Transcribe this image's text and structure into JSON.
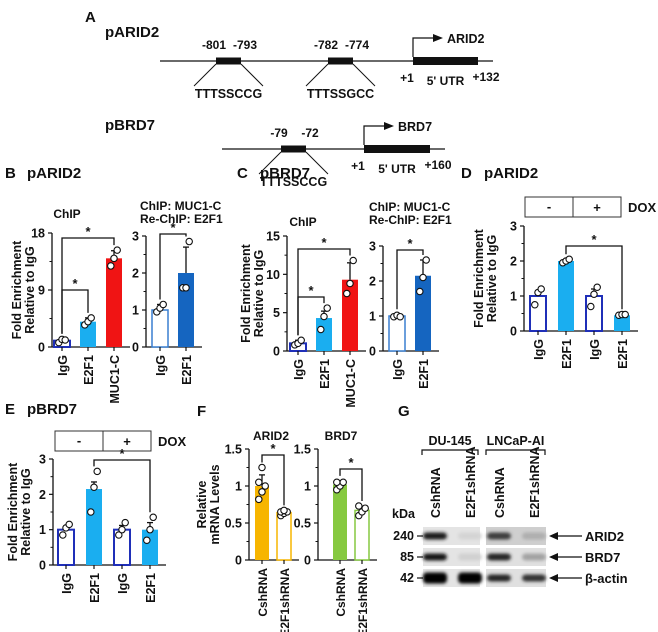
{
  "figure": {
    "panelA": {
      "letter": "A",
      "pARID2": {
        "label": "pARID2",
        "sites": [
          {
            "start": "-801",
            "end": "-793",
            "motif": "TTTSSCCG"
          },
          {
            "start": "-782",
            "end": "-774",
            "motif": "TTTSSGCC"
          }
        ],
        "gene": "ARID2",
        "tss": "+1",
        "utr": "5' UTR",
        "utr_end": "+132"
      },
      "pBRD7": {
        "label": "pBRD7",
        "sites": [
          {
            "start": "-79",
            "end": "-72",
            "motif": "TTTSSCCG"
          }
        ],
        "gene": "BRD7",
        "tss": "+1",
        "utr": "5' UTR",
        "utr_end": "+160"
      }
    },
    "panelB": {
      "letter": "B",
      "title": "pARID2"
    },
    "panelC": {
      "letter": "C",
      "title": "pBRD7"
    },
    "panelD": {
      "letter": "D",
      "title": "pARID2",
      "dox_label": "DOX",
      "dox_minus": "-",
      "dox_plus": "+"
    },
    "panelE": {
      "letter": "E",
      "title": "pBRD7",
      "dox_label": "DOX",
      "dox_minus": "-",
      "dox_plus": "+"
    },
    "panelF": {
      "letter": "F"
    },
    "panelG": {
      "letter": "G",
      "cell_lines": [
        "DU-145",
        "LNCaP-AI"
      ],
      "lanes": [
        "CshRNA",
        "E2F1shRNA",
        "CshRNA",
        "E2F1shRNA"
      ],
      "kda_label": "kDa",
      "markers": [
        "240",
        "85",
        "42"
      ],
      "bands": [
        "ARID2",
        "BRD7",
        "β-actin"
      ],
      "intensity": {
        "ARID2": [
          0.9,
          0.08,
          0.75,
          0.25
        ],
        "BRD7": [
          0.92,
          0.1,
          0.85,
          0.3
        ],
        "β-actin": [
          1.0,
          1.0,
          0.85,
          0.8
        ]
      }
    }
  },
  "chart_data": [
    {
      "id": "B1",
      "type": "bar",
      "title": "ChIP",
      "ylabel": "Fold Enrichment Relative to IgG",
      "categories": [
        "IgG",
        "E2F1",
        "MUC1-C"
      ],
      "values": [
        1,
        4,
        14
      ],
      "errors": [
        0.3,
        0.6,
        1.2
      ],
      "points": [
        [
          0.7,
          1.2,
          1.1
        ],
        [
          3.5,
          4.0,
          4.6
        ],
        [
          12.8,
          14.0,
          15.3
        ]
      ],
      "styles": [
        "hollow-navy",
        "lightblue",
        "red"
      ],
      "ylim": [
        0,
        18
      ],
      "yticks": [
        0,
        9,
        18
      ],
      "significance": [
        {
          "from": 0,
          "to": 2,
          "label": "*"
        },
        {
          "from": 0,
          "to": 1,
          "label": "*"
        }
      ]
    },
    {
      "id": "B2",
      "type": "bar",
      "title": "ChIP: MUC1-C\nRe-ChIP: E2F1",
      "categories": [
        "IgG",
        "E2F1"
      ],
      "values": [
        1,
        2
      ],
      "errors": [
        0.15,
        0.7
      ],
      "points": [
        [
          0.95,
          1.05,
          1.15
        ],
        [
          1.6,
          1.6,
          2.85
        ]
      ],
      "styles": [
        "hollow-blue",
        "darkblue"
      ],
      "ylim": [
        0,
        3
      ],
      "yticks": [
        0,
        1,
        2,
        3
      ],
      "significance": [
        {
          "from": 0,
          "to": 1,
          "label": "*"
        }
      ]
    },
    {
      "id": "C1",
      "type": "bar",
      "title": "ChIP",
      "ylabel": "Fold Enrichment Relative to IgG",
      "categories": [
        "IgG",
        "E2F1",
        "MUC1-C"
      ],
      "values": [
        1,
        4.3,
        9.3
      ],
      "errors": [
        0.4,
        0.9,
        2.2
      ],
      "points": [
        [
          0.8,
          1.0,
          1.4
        ],
        [
          2.8,
          4.5,
          5.6
        ],
        [
          7.5,
          8.8,
          11.8
        ]
      ],
      "styles": [
        "hollow-navy",
        "lightblue",
        "red"
      ],
      "ylim": [
        0,
        15
      ],
      "yticks": [
        0,
        5,
        10,
        15
      ],
      "significance": [
        {
          "from": 0,
          "to": 2,
          "label": "*"
        },
        {
          "from": 0,
          "to": 1,
          "label": "*"
        }
      ]
    },
    {
      "id": "C2",
      "type": "bar",
      "title": "ChIP: MUC1-C\nRe-ChIP: E2F1",
      "categories": [
        "IgG",
        "E2F1"
      ],
      "values": [
        1,
        2.15
      ],
      "errors": [
        0.05,
        0.45
      ],
      "points": [
        [
          0.98,
          1.02,
          0.98
        ],
        [
          1.7,
          2.1,
          2.6
        ]
      ],
      "styles": [
        "hollow-blue",
        "darkblue"
      ],
      "ylim": [
        0,
        3
      ],
      "yticks": [
        0,
        1,
        2,
        3
      ],
      "significance": [
        {
          "from": 0,
          "to": 1,
          "label": "*"
        }
      ]
    },
    {
      "id": "D",
      "type": "bar",
      "title": "",
      "ylabel": "Fold Enrichment Relative to IgG",
      "categories": [
        "IgG",
        "E2F1",
        "IgG",
        "E2F1"
      ],
      "groups": [
        "DOX -",
        "DOX -",
        "DOX +",
        "DOX +"
      ],
      "values": [
        1.0,
        2.0,
        1.0,
        0.45
      ],
      "errors": [
        0.15,
        0.05,
        0.2,
        0.03
      ],
      "points": [
        [
          0.75,
          1.1,
          1.2
        ],
        [
          1.95,
          2.0,
          2.05
        ],
        [
          0.7,
          1.05,
          1.25
        ],
        [
          0.45,
          0.47,
          0.47
        ]
      ],
      "styles": [
        "hollow-navy",
        "lightblue",
        "hollow-navy",
        "lightblue"
      ],
      "ylim": [
        0,
        3
      ],
      "yticks": [
        0,
        1,
        2,
        3
      ],
      "significance": [
        {
          "from": 1,
          "to": 3,
          "label": "*"
        }
      ]
    },
    {
      "id": "E",
      "type": "bar",
      "title": "",
      "ylabel": "Fold Enrichment Relative to IgG",
      "categories": [
        "IgG",
        "E2F1",
        "IgG",
        "E2F1"
      ],
      "groups": [
        "DOX -",
        "DOX -",
        "DOX +",
        "DOX +"
      ],
      "values": [
        1.0,
        2.15,
        1.0,
        1.0
      ],
      "errors": [
        0.1,
        0.2,
        0.12,
        0.2
      ],
      "points": [
        [
          0.85,
          1.05,
          1.15
        ],
        [
          1.5,
          2.2,
          2.65
        ],
        [
          0.85,
          1.0,
          1.2
        ],
        [
          0.7,
          1.0,
          1.35
        ]
      ],
      "styles": [
        "hollow-navy",
        "lightblue",
        "hollow-navy",
        "lightblue"
      ],
      "ylim": [
        0,
        3
      ],
      "yticks": [
        0,
        1,
        2,
        3
      ],
      "significance": [
        {
          "from": 1,
          "to": 3,
          "label": "*"
        }
      ]
    },
    {
      "id": "F1",
      "type": "bar",
      "title": "ARID2",
      "ylabel": "Relative mRNA Levels",
      "categories": [
        "CshRNA",
        "E2F1shRNA"
      ],
      "values": [
        1.0,
        0.64
      ],
      "errors": [
        0.15,
        0.03
      ],
      "points": [
        [
          0.82,
          0.92,
          1.0,
          1.05,
          1.25
        ],
        [
          0.6,
          0.63,
          0.65,
          0.65,
          0.67
        ]
      ],
      "styles": [
        "orange",
        "hollow-orange"
      ],
      "ylim": [
        0,
        1.5
      ],
      "yticks": [
        0,
        0.5,
        1.0,
        1.5
      ],
      "significance": [
        {
          "from": 0,
          "to": 1,
          "label": "*"
        }
      ]
    },
    {
      "id": "F2",
      "type": "bar",
      "title": "BRD7",
      "categories": [
        "CshRNA",
        "E2F1shRNA"
      ],
      "values": [
        1.02,
        0.67
      ],
      "errors": [
        0.05,
        0.05
      ],
      "points": [
        [
          0.95,
          1.0,
          1.05,
          1.05
        ],
        [
          0.6,
          0.65,
          0.7,
          0.73
        ]
      ],
      "styles": [
        "green",
        "hollow-green"
      ],
      "ylim": [
        0,
        1.5
      ],
      "yticks": [
        0,
        0.5,
        1.0,
        1.5
      ],
      "significance": [
        {
          "from": 0,
          "to": 1,
          "label": "*"
        }
      ]
    }
  ],
  "colors": {
    "navy": "#1f2fb8",
    "lightblue": "#1aaef0",
    "red": "#f01414",
    "darkblue": "#1565c0",
    "blue_outline": "#3a7fd0",
    "orange": "#f7b500",
    "green": "#86c940",
    "black": "#111111"
  }
}
